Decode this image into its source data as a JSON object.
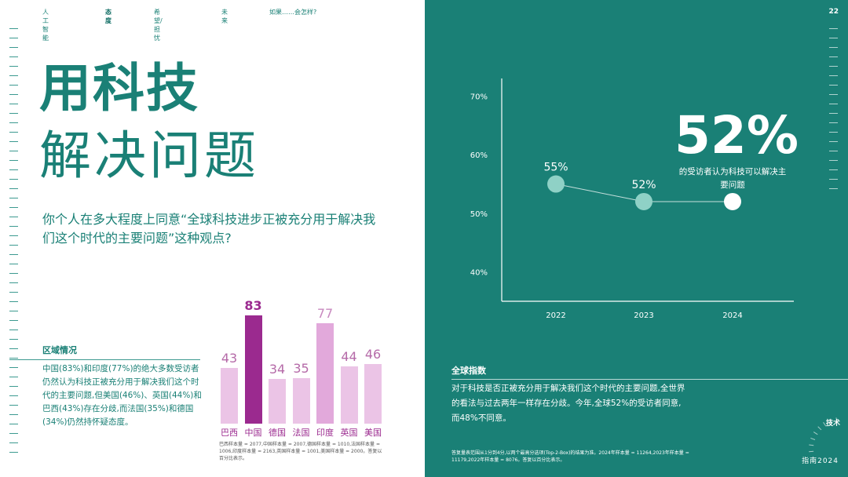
{
  "nav": {
    "items": [
      "人工智能",
      "态度",
      "希望/担忧",
      "未来",
      "如果……会怎样?"
    ]
  },
  "left": {
    "title_line1": "用科技",
    "title_line2": "解决问题",
    "question": "你个人在多大程度上同意“全球科技进步正被充分用于解决我们这个时代的主要问题”这种观点?",
    "region_heading": "区域情况",
    "region_text": "中国(83%)和印度(77%)的绝大多数受访者仍然认为科技正被充分用于解决我们这个时代的主要问题,但美国(46%)、英国(44%)和巴西(43%)存在分歧,而法国(35%)和德国(34%)仍然持怀疑态度。",
    "bars_note": "巴西样本量 = 2077,中国样本量 = 2007,德国样本量 = 1010,法国样本量 = 1006,印度样本量 = 2163,英国样本量 = 1001,美国样本量 = 2000。答复以百分比表示。"
  },
  "right": {
    "page_number": "22",
    "big_pct": "52%",
    "big_caption": "的受访者认为科技可以解决主要问题",
    "global_heading": "全球指数",
    "global_text": "对于科技是否正被充分用于解决我们这个时代的主要问题,全世界的看法与过去两年一样存在分歧。今年,全球52%的受访者同意,而48%不同意。",
    "global_note": "答复量表范围从1分到4分,以两个最高分选项(Top-2-Box)的结果为准。2024年样本量 = 11264,2023年样本量 = 11179,2022年样本量 = 8076。答复以百分比表示。",
    "tech_tag": "技术",
    "guide": "指南2024"
  },
  "colors": {
    "teal": "#1a8076",
    "magenta": "#9b2a8f",
    "bar_light": "#ebc4e6",
    "bar_mid": "#e2a9db",
    "bar_dark": "#9b2a8f"
  },
  "chart_data": [
    {
      "type": "bar",
      "categories": [
        "巴西",
        "中国",
        "德国",
        "法国",
        "印度",
        "英国",
        "美国"
      ],
      "values": [
        43,
        83,
        34,
        35,
        77,
        44,
        46
      ],
      "highlight": [
        "中国",
        "印度"
      ],
      "ylim": [
        0,
        100
      ]
    },
    {
      "type": "line",
      "x": [
        "2022",
        "2023",
        "2024"
      ],
      "values": [
        55,
        52,
        52
      ],
      "point_labels": [
        "55%",
        "52%",
        ""
      ],
      "yticks": [
        "40%",
        "50%",
        "60%",
        "70%"
      ],
      "ylim": [
        35,
        73
      ]
    }
  ]
}
